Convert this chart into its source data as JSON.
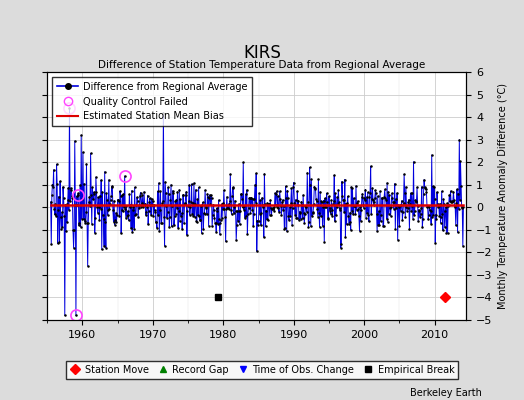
{
  "title": "KIRS",
  "subtitle": "Difference of Station Temperature Data from Regional Average",
  "ylabel": "Monthly Temperature Anomaly Difference (°C)",
  "ylim": [
    -5,
    6
  ],
  "year_start": 1955.0,
  "year_end": 2014.5,
  "bg_color": "#dcdcdc",
  "plot_bg_color": "#ffffff",
  "line_color": "#0000dd",
  "bias_color": "#dd0000",
  "qc_color": "#ff44ff",
  "bias_value": 0.08,
  "watermark": "Berkeley Earth",
  "station_moves": [
    2011.5
  ],
  "empirical_breaks": [
    1979.3
  ],
  "obs_changes": [],
  "record_gaps": [],
  "qc_years": [
    1958.2,
    1959.1,
    1959.3,
    1966.0
  ],
  "big_spikes": {
    "1958.2": 4.4,
    "1959.1": -4.8,
    "1971.5": 4.2,
    "1959.8": 3.2,
    "2013.5": 3.0,
    "1957.5": -4.8,
    "1963.3": -1.8,
    "1979.5": -1.2
  },
  "seed": 17
}
